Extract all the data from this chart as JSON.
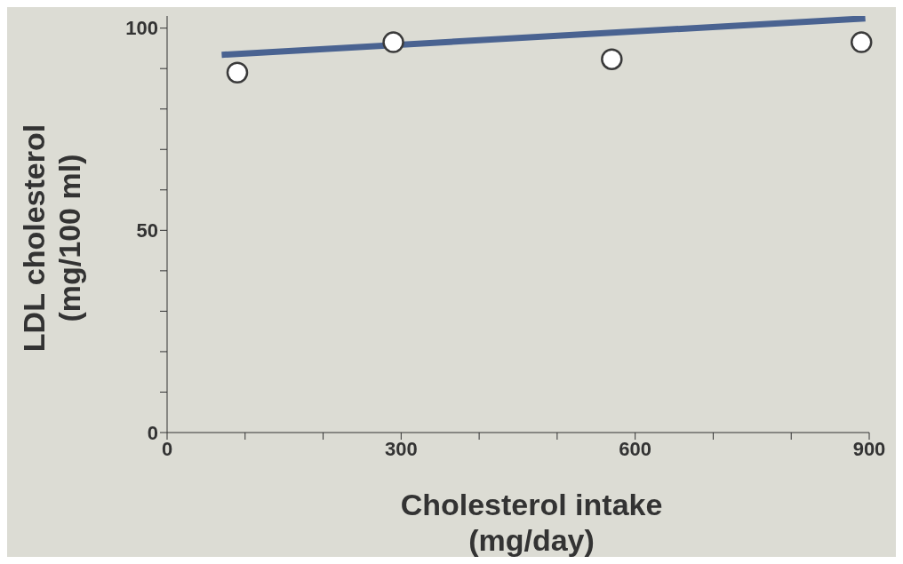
{
  "chart_data": {
    "type": "scatter",
    "xlabel": "Cholesterol intake\n(mg/day)",
    "ylabel": "LDL cholesterol\n(mg/100 ml)",
    "xlim": [
      0,
      900
    ],
    "xticks": [
      0,
      {
        "value": 100,
        "label": null
      },
      {
        "value": 200,
        "label": null
      },
      300,
      {
        "value": 400,
        "label": null
      },
      {
        "value": 500,
        "label": null
      },
      600,
      {
        "value": 700,
        "label": null
      },
      {
        "value": 800,
        "label": null
      },
      900
    ],
    "ylim": [
      0,
      103
    ],
    "yticks": [
      0,
      {
        "value": 10,
        "label": null
      },
      {
        "value": 20,
        "label": null
      },
      {
        "value": 30,
        "label": null
      },
      {
        "value": 40,
        "label": null
      },
      50,
      {
        "value": 60,
        "label": null
      },
      {
        "value": 70,
        "label": null
      },
      {
        "value": 80,
        "label": null
      },
      {
        "value": 90,
        "label": null
      },
      100
    ],
    "grid": false,
    "legend": false,
    "marker": "circle",
    "series": [
      {
        "color": "#3a3a3a",
        "x": [
          90,
          290,
          570,
          890
        ],
        "values": [
          89,
          96.5,
          92.3,
          96.5
        ]
      },
      {
        "type": "line",
        "color": "#4a6391",
        "x": [
          70,
          895
        ],
        "values": [
          93.4,
          102.4
        ],
        "marker": "none",
        "line_style": "solid"
      }
    ]
  }
}
